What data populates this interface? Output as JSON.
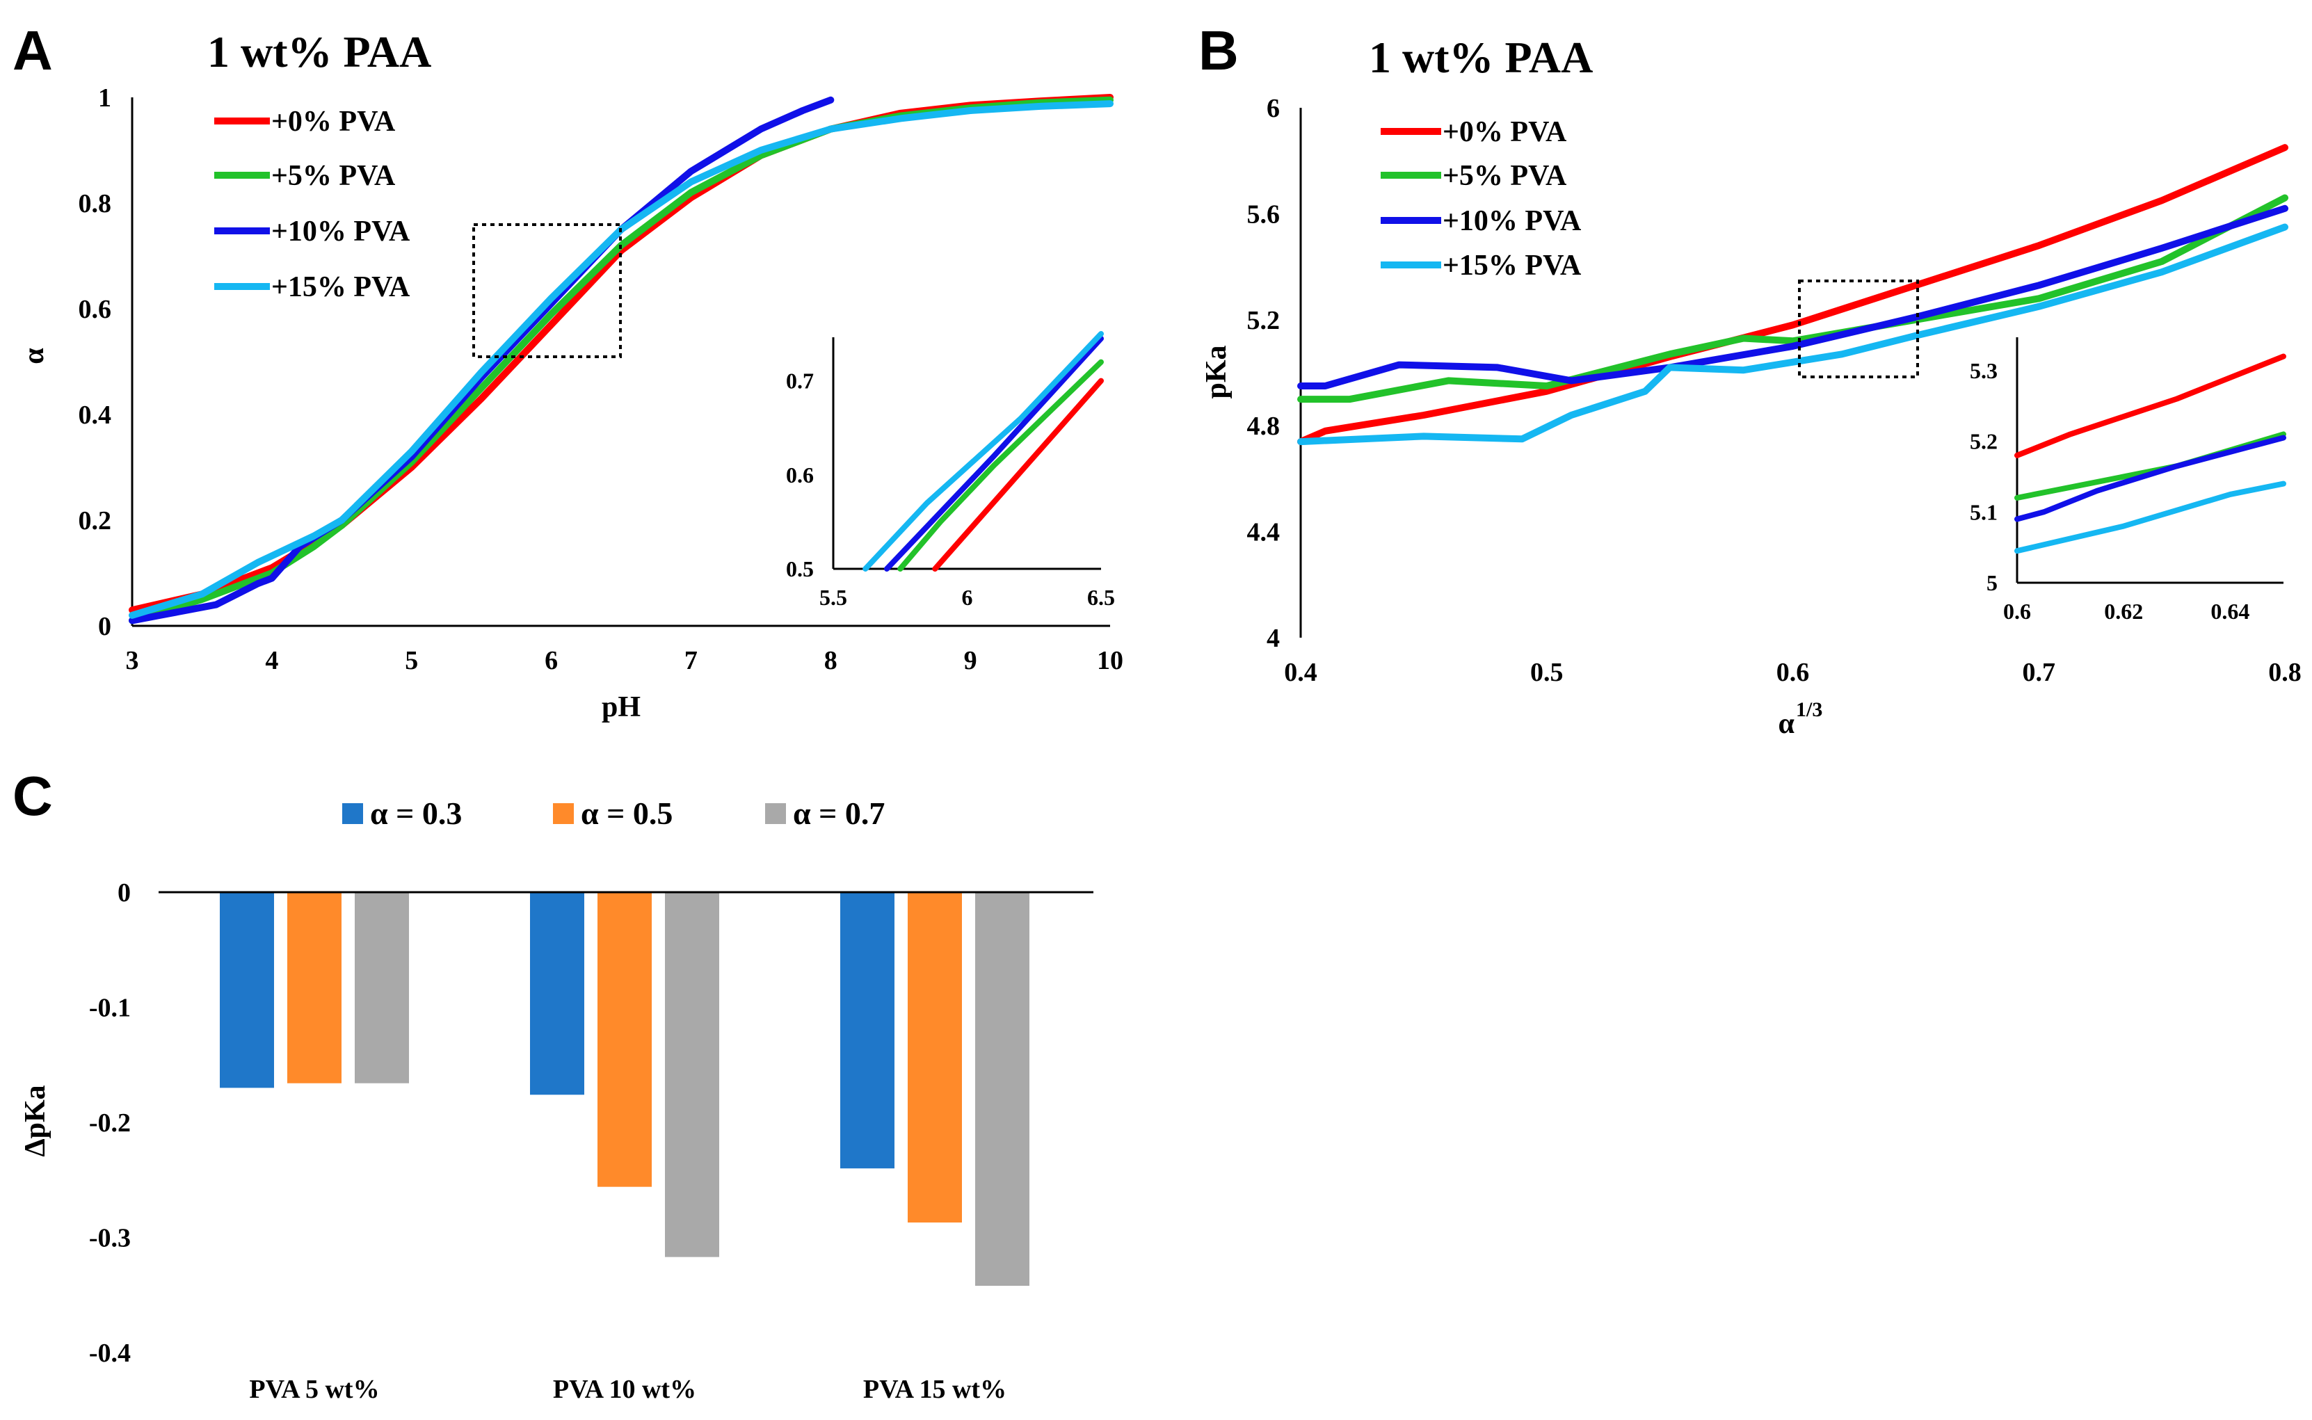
{
  "colors": {
    "red": "#ff0000",
    "green": "#22c22a",
    "blue": "#1010e8",
    "cyan": "#15b7f2",
    "bar_blue": "#1f77c9",
    "bar_orange": "#ff8a2a",
    "bar_gray": "#a9a9a9"
  },
  "chart_data": [
    {
      "panel": "A",
      "type": "line",
      "title": "1 wt%  PAA",
      "xlabel": "pH",
      "ylabel": "α",
      "xlim": [
        3,
        10
      ],
      "ylim": [
        0,
        1
      ],
      "xticks": [
        "3",
        "4",
        "5",
        "6",
        "7",
        "8",
        "9",
        "10"
      ],
      "yticks": [
        "0",
        "0.2",
        "0.4",
        "0.6",
        "0.8",
        "1"
      ],
      "legend_position": "top-left",
      "series": [
        {
          "name": "+0% PVA",
          "color_key": "red",
          "x": [
            3.0,
            3.5,
            4.0,
            4.5,
            5.0,
            5.5,
            6.0,
            6.5,
            7.0,
            7.5,
            8.0,
            8.5,
            9.0,
            9.5,
            10.0
          ],
          "y": [
            0.03,
            0.06,
            0.11,
            0.19,
            0.3,
            0.43,
            0.57,
            0.71,
            0.81,
            0.89,
            0.94,
            0.97,
            0.985,
            0.993,
            1.0
          ]
        },
        {
          "name": "+5% PVA",
          "color_key": "green",
          "x": [
            3.0,
            3.5,
            4.0,
            4.3,
            4.5,
            5.0,
            5.5,
            6.0,
            6.5,
            7.0,
            7.5,
            8.0,
            8.5,
            9.0,
            9.5,
            10.0
          ],
          "y": [
            0.01,
            0.05,
            0.1,
            0.15,
            0.19,
            0.31,
            0.45,
            0.59,
            0.72,
            0.82,
            0.89,
            0.94,
            0.965,
            0.98,
            0.99,
            0.995
          ]
        },
        {
          "name": "+10% PVA",
          "color_key": "blue",
          "x": [
            3.0,
            3.6,
            3.9,
            4.0,
            4.2,
            4.5,
            5.0,
            5.5,
            6.0,
            6.5,
            7.0,
            7.5,
            7.8,
            8.0
          ],
          "y": [
            0.01,
            0.04,
            0.08,
            0.09,
            0.15,
            0.2,
            0.32,
            0.47,
            0.61,
            0.75,
            0.86,
            0.94,
            0.975,
            0.995
          ]
        },
        {
          "name": "+15% PVA",
          "color_key": "cyan",
          "x": [
            3.0,
            3.5,
            3.9,
            4.3,
            4.5,
            5.0,
            5.5,
            6.0,
            6.5,
            7.0,
            7.5,
            8.0,
            8.5,
            9.0,
            9.5,
            10.0
          ],
          "y": [
            0.02,
            0.06,
            0.12,
            0.17,
            0.2,
            0.33,
            0.48,
            0.62,
            0.75,
            0.84,
            0.9,
            0.94,
            0.96,
            0.975,
            0.983,
            0.988
          ]
        }
      ],
      "inset": {
        "xlim": [
          5.5,
          6.5
        ],
        "ylim": [
          0.5,
          0.75
        ],
        "xticks": [
          "5.5",
          "6",
          "6.5"
        ],
        "yticks": [
          "0.5",
          "0.6",
          "0.7"
        ],
        "series": [
          {
            "color_key": "red",
            "x": [
              5.88,
              6.5
            ],
            "y": [
              0.5,
              0.7
            ]
          },
          {
            "color_key": "green",
            "x": [
              5.75,
              5.9,
              6.1,
              6.5
            ],
            "y": [
              0.5,
              0.55,
              0.61,
              0.72
            ]
          },
          {
            "color_key": "blue",
            "x": [
              5.7,
              6.1,
              6.5
            ],
            "y": [
              0.5,
              0.62,
              0.745
            ]
          },
          {
            "color_key": "cyan",
            "x": [
              5.62,
              5.85,
              6.2,
              6.5
            ],
            "y": [
              0.5,
              0.57,
              0.66,
              0.75
            ]
          }
        ]
      }
    },
    {
      "panel": "B",
      "type": "line",
      "title": "1 wt%  PAA",
      "xlabel_base": "α",
      "xlabel_sup": "1/3",
      "ylabel": "pKa",
      "xlim": [
        0.4,
        0.8
      ],
      "ylim": [
        4,
        6
      ],
      "xticks": [
        "0.4",
        "0.5",
        "0.6",
        "0.7",
        "0.8"
      ],
      "yticks": [
        "4",
        "4.4",
        "4.8",
        "5.2",
        "5.6",
        "6"
      ],
      "legend_position": "top-left",
      "series": [
        {
          "name": "+0% PVA",
          "color_key": "red",
          "x": [
            0.4,
            0.41,
            0.45,
            0.5,
            0.55,
            0.6,
            0.65,
            0.7,
            0.75,
            0.8
          ],
          "y": [
            4.74,
            4.78,
            4.84,
            4.93,
            5.06,
            5.18,
            5.33,
            5.48,
            5.65,
            5.85
          ]
        },
        {
          "name": "+5% PVA",
          "color_key": "green",
          "x": [
            0.4,
            0.42,
            0.46,
            0.5,
            0.55,
            0.58,
            0.6,
            0.65,
            0.7,
            0.75,
            0.8
          ],
          "y": [
            4.9,
            4.9,
            4.97,
            4.95,
            5.07,
            5.13,
            5.12,
            5.2,
            5.28,
            5.42,
            5.66
          ]
        },
        {
          "name": "+10% PVA",
          "color_key": "blue",
          "x": [
            0.4,
            0.41,
            0.44,
            0.48,
            0.51,
            0.55,
            0.6,
            0.65,
            0.7,
            0.75,
            0.8
          ],
          "y": [
            4.95,
            4.95,
            5.03,
            5.02,
            4.97,
            5.02,
            5.1,
            5.21,
            5.33,
            5.47,
            5.62
          ]
        },
        {
          "name": "+15% PVA",
          "color_key": "cyan",
          "x": [
            0.4,
            0.45,
            0.49,
            0.51,
            0.54,
            0.55,
            0.58,
            0.62,
            0.65,
            0.7,
            0.75,
            0.8
          ],
          "y": [
            4.74,
            4.76,
            4.75,
            4.84,
            4.93,
            5.02,
            5.01,
            5.07,
            5.14,
            5.25,
            5.38,
            5.55
          ]
        }
      ],
      "inset": {
        "xlim": [
          0.6,
          0.65
        ],
        "ylim": [
          5,
          5.35
        ],
        "xticks": [
          "0.6",
          "0.62",
          "0.64"
        ],
        "yticks": [
          "5",
          "5.1",
          "5.2",
          "5.3"
        ],
        "series": [
          {
            "color_key": "red",
            "x": [
              0.6,
              0.61,
              0.63,
              0.65
            ],
            "y": [
              5.18,
              5.21,
              5.26,
              5.32
            ]
          },
          {
            "color_key": "green",
            "x": [
              0.6,
              0.61,
              0.63,
              0.65
            ],
            "y": [
              5.12,
              5.135,
              5.165,
              5.21
            ]
          },
          {
            "color_key": "blue",
            "x": [
              0.6,
              0.605,
              0.615,
              0.63,
              0.65
            ],
            "y": [
              5.09,
              5.1,
              5.13,
              5.165,
              5.205
            ]
          },
          {
            "color_key": "cyan",
            "x": [
              0.6,
              0.62,
              0.64,
              0.65
            ],
            "y": [
              5.045,
              5.08,
              5.125,
              5.14
            ]
          }
        ]
      }
    },
    {
      "panel": "C",
      "type": "bar",
      "ylabel": "ΔpKa",
      "ylim": [
        -0.4,
        0
      ],
      "yticks": [
        "0",
        "-0.1",
        "-0.2",
        "-0.3",
        "-0.4"
      ],
      "categories": [
        "PVA 5 wt%",
        "PVA 10 wt%",
        "PVA 15 wt%"
      ],
      "legend_position": "top-center",
      "series": [
        {
          "name": "α = 0.3",
          "color_key": "bar_blue",
          "values": [
            -0.17,
            -0.176,
            -0.24
          ]
        },
        {
          "name": "α = 0.5",
          "color_key": "bar_orange",
          "values": [
            -0.166,
            -0.256,
            -0.287
          ]
        },
        {
          "name": "α = 0.7",
          "color_key": "bar_gray",
          "values": [
            -0.166,
            -0.317,
            -0.342
          ]
        }
      ]
    }
  ]
}
